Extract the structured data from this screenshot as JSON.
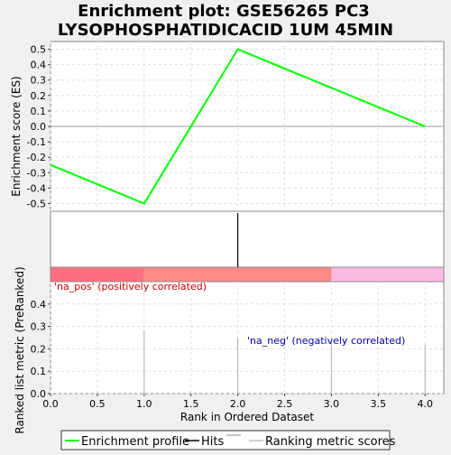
{
  "chart_data": {
    "type": "line",
    "title_lines": [
      "Enrichment plot: GSE56265 PC3",
      "LYSOPHOSPHATIDICACID  1UM 45MIN"
    ],
    "xlabel": "Rank in Ordered Dataset",
    "xlim": [
      0,
      4.2
    ],
    "x_ticks": [
      "0.0",
      "0.5",
      "1.0",
      "1.5",
      "2.0",
      "2.5",
      "3.0",
      "3.5",
      "4.0"
    ],
    "es_panel": {
      "ylabel": "Enrichment score (ES)",
      "ylim": [
        -0.55,
        0.55
      ],
      "y_ticks": [
        "0.5",
        "0.4",
        "0.3",
        "0.2",
        "0.1",
        "0.0",
        "-0.1",
        "-0.2",
        "-0.3",
        "-0.4",
        "-0.5"
      ],
      "series": [
        {
          "name": "Enrichment profile",
          "color": "#00ff00",
          "x": [
            0,
            1,
            2,
            3,
            4
          ],
          "y": [
            -0.25,
            -0.5,
            0.5,
            0.25,
            0.0
          ]
        }
      ]
    },
    "hits": {
      "x": [
        2
      ],
      "color": "#000000"
    },
    "color_bar": [
      {
        "from": 0,
        "to": 1,
        "color": "#ff6f80"
      },
      {
        "from": 1,
        "to": 3,
        "color": "#fd8a84"
      },
      {
        "from": 3,
        "to": 4.2,
        "color": "#fdbae2"
      }
    ],
    "metric_panel": {
      "ylabel": "Ranked list metric (PreRanked)",
      "ylim": [
        0,
        0.5
      ],
      "y_ticks": [
        "0.4",
        "0.3",
        "0.2",
        "0.1",
        "0.0"
      ],
      "x": [
        1,
        2,
        3,
        4
      ],
      "values": [
        0.28,
        0.25,
        0.23,
        0.22
      ],
      "color": "#b0b0b0"
    },
    "annotations": {
      "pos": "'na_pos' (positively correlated)",
      "neg": "'na_neg' (negatively correlated)"
    },
    "legend": {
      "items": [
        {
          "label": "Enrichment profile",
          "color": "#00ff00"
        },
        {
          "label": "Hits",
          "color": "#000000"
        },
        {
          "label": "Ranking metric scores",
          "color": "#c0c0c0"
        }
      ]
    }
  }
}
